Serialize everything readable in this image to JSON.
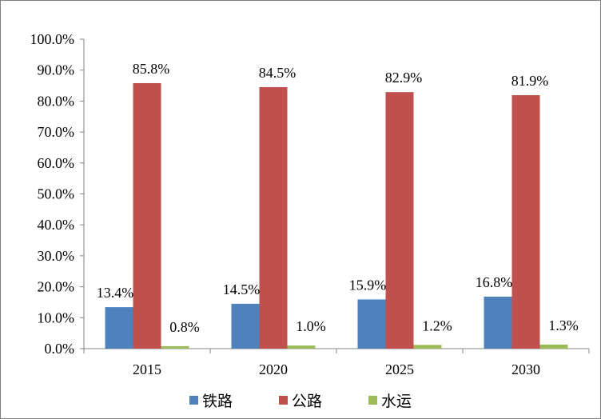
{
  "chart_data": {
    "type": "bar",
    "categories": [
      "2015",
      "2020",
      "2025",
      "2030"
    ],
    "series": [
      {
        "name": "铁路",
        "color": "#4f81bd",
        "values": [
          13.4,
          14.5,
          15.9,
          16.8
        ],
        "labels": [
          "13.4%",
          "14.5%",
          "15.9%",
          "16.8%"
        ]
      },
      {
        "name": "公路",
        "color": "#c0504d",
        "values": [
          85.8,
          84.5,
          82.9,
          81.9
        ],
        "labels": [
          "85.8%",
          "84.5%",
          "82.9%",
          "81.9%"
        ]
      },
      {
        "name": "水运",
        "color": "#9bbb59",
        "values": [
          0.8,
          1.0,
          1.2,
          1.3
        ],
        "labels": [
          "0.8%",
          "1.0%",
          "1.2%",
          "1.3%"
        ]
      }
    ],
    "y_ticks": [
      "0.0%",
      "10.0%",
      "20.0%",
      "30.0%",
      "40.0%",
      "50.0%",
      "60.0%",
      "70.0%",
      "80.0%",
      "90.0%",
      "100.0%"
    ],
    "ylim": [
      0,
      100
    ],
    "title": "",
    "xlabel": "",
    "ylabel": "",
    "grid": false,
    "legend_position": "bottom"
  }
}
